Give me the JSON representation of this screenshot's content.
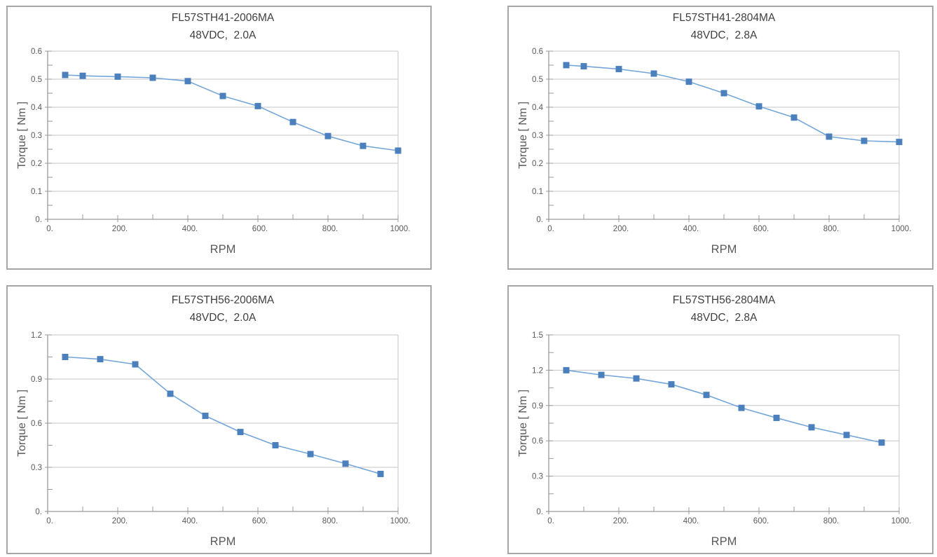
{
  "colors": {
    "marker": "#4b80bc",
    "line": "#74a6d9",
    "grid": "#c6c6c6",
    "axis": "#9a9a9a",
    "tick_text": "#595959",
    "title_text": "#3f3f3f",
    "panel_border": "#a6a6a6",
    "background": "#ffffff"
  },
  "chart_data": [
    {
      "type": "line",
      "title": "FL57STH41-2006MA",
      "subtitle": "48VDC,  2.0A",
      "xlabel": "RPM",
      "ylabel": "Torque [ Nm ]",
      "legend": "none",
      "grid": "horizontal",
      "xlim": [
        0,
        1000
      ],
      "ylim": [
        0,
        0.6
      ],
      "xticks": [
        0,
        200,
        400,
        600,
        800,
        1000
      ],
      "xtick_labels": [
        "0.",
        "200.",
        "400.",
        "600.",
        "800.",
        "1000."
      ],
      "x_minor_step": 100,
      "yticks": [
        0,
        0.1,
        0.2,
        0.3,
        0.4,
        0.5,
        0.6
      ],
      "ytick_labels": [
        "0.",
        "0.1",
        "0.2",
        "0.3",
        "0.4",
        "0.5",
        "0.6"
      ],
      "y_minor_step": 0.05,
      "x": [
        50,
        100,
        200,
        300,
        400,
        500,
        600,
        700,
        800,
        900,
        1000
      ],
      "y": [
        0.515,
        0.512,
        0.509,
        0.505,
        0.493,
        0.44,
        0.404,
        0.347,
        0.297,
        0.262,
        0.245
      ]
    },
    {
      "type": "line",
      "title": "FL57STH41-2804MA",
      "subtitle": "48VDC,  2.8A",
      "xlabel": "RPM",
      "ylabel": "Torque [ Nm ]",
      "legend": "none",
      "grid": "horizontal",
      "xlim": [
        0,
        1000
      ],
      "ylim": [
        0,
        0.6
      ],
      "xticks": [
        0,
        200,
        400,
        600,
        800,
        1000
      ],
      "xtick_labels": [
        "0.",
        "200.",
        "400.",
        "600.",
        "800.",
        "1000."
      ],
      "x_minor_step": 100,
      "yticks": [
        0,
        0.1,
        0.2,
        0.3,
        0.4,
        0.5,
        0.6
      ],
      "ytick_labels": [
        "0.",
        "0.1",
        "0.2",
        "0.3",
        "0.4",
        "0.5",
        "0.6"
      ],
      "y_minor_step": 0.05,
      "x": [
        50,
        100,
        200,
        300,
        400,
        500,
        600,
        700,
        800,
        900,
        1000
      ],
      "y": [
        0.55,
        0.546,
        0.536,
        0.52,
        0.491,
        0.45,
        0.403,
        0.363,
        0.295,
        0.28,
        0.276
      ]
    },
    {
      "type": "line",
      "title": "FL57STH56-2006MA",
      "subtitle": "48VDC,  2.0A",
      "xlabel": "RPM",
      "ylabel": "Torque [ Nm ]",
      "legend": "none",
      "grid": "horizontal",
      "xlim": [
        0,
        1000
      ],
      "ylim": [
        0,
        1.2
      ],
      "xticks": [
        0,
        200,
        400,
        600,
        800,
        1000
      ],
      "xtick_labels": [
        "0.",
        "200.",
        "400.",
        "600.",
        "800.",
        "1000."
      ],
      "x_minor_step": 100,
      "yticks": [
        0,
        0.3,
        0.6,
        0.9,
        1.2
      ],
      "ytick_labels": [
        "0.",
        "0.3",
        "0.6",
        "0.9",
        "1.2"
      ],
      "y_minor_step": 0.15,
      "x": [
        50,
        150,
        250,
        350,
        450,
        550,
        650,
        750,
        850,
        950
      ],
      "y": [
        1.05,
        1.035,
        1.0,
        0.8,
        0.65,
        0.54,
        0.45,
        0.39,
        0.325,
        0.255
      ]
    },
    {
      "type": "line",
      "title": "FL57STH56-2804MA",
      "subtitle": "48VDC,  2.8A",
      "xlabel": "RPM",
      "ylabel": "Torque [ Nm ]",
      "legend": "none",
      "grid": "horizontal",
      "xlim": [
        0,
        1000
      ],
      "ylim": [
        0,
        1.5
      ],
      "xticks": [
        0,
        200,
        400,
        600,
        800,
        1000
      ],
      "xtick_labels": [
        "0.",
        "200.",
        "400.",
        "600.",
        "800.",
        "1000."
      ],
      "x_minor_step": 100,
      "yticks": [
        0,
        0.3,
        0.6,
        0.9,
        1.2,
        1.5
      ],
      "ytick_labels": [
        "0.",
        "0.3",
        "0.6",
        "0.9",
        "1.2",
        "1.5"
      ],
      "y_minor_step": 0.15,
      "x": [
        50,
        150,
        250,
        350,
        450,
        550,
        650,
        750,
        850,
        950
      ],
      "y": [
        1.2,
        1.16,
        1.13,
        1.08,
        0.99,
        0.88,
        0.795,
        0.715,
        0.65,
        0.585
      ]
    }
  ]
}
